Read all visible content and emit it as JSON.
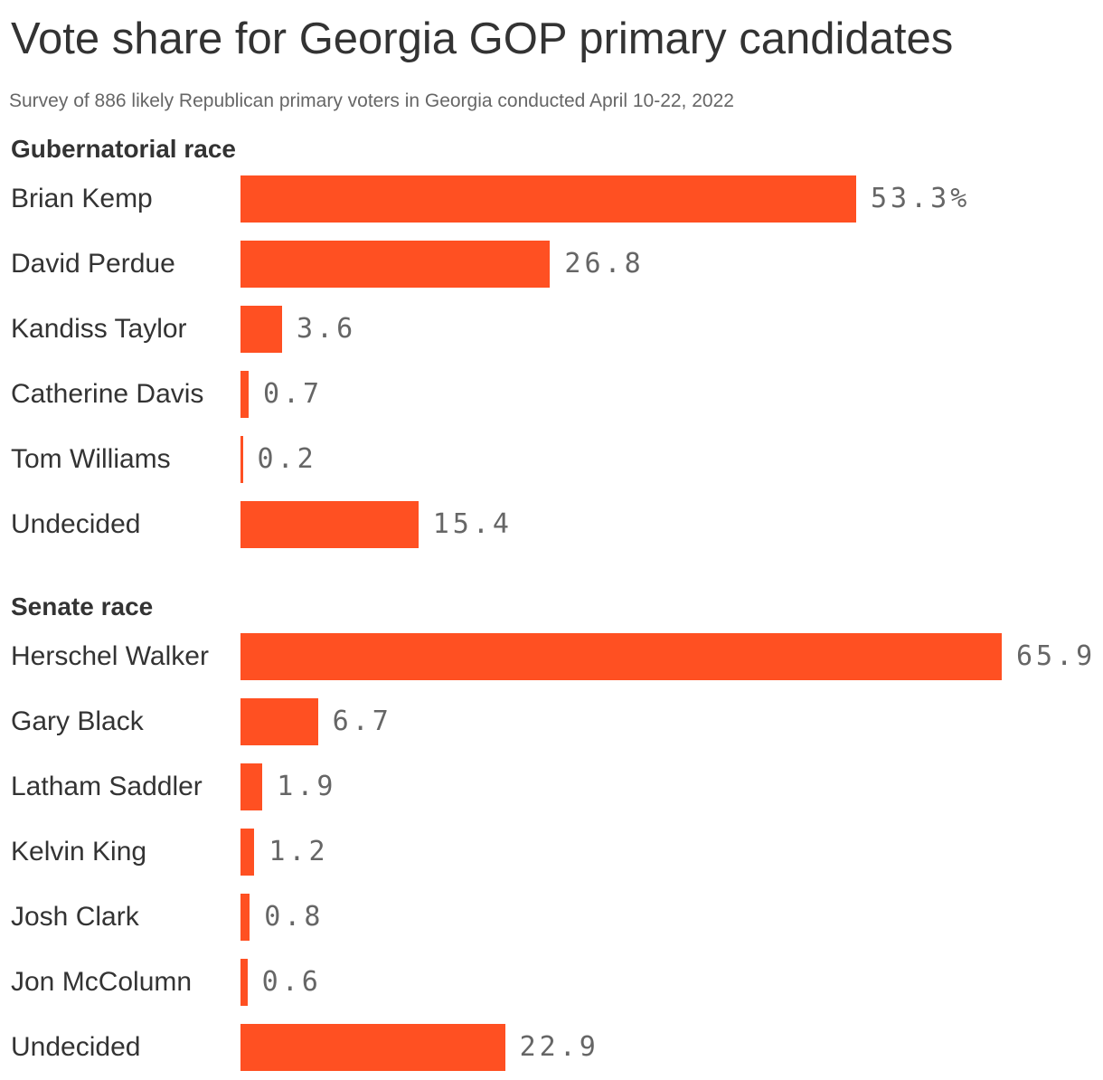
{
  "header": {
    "title": "Vote share for Georgia GOP primary candidates",
    "subtitle": "Survey of 886 likely Republican primary voters in Georgia conducted April 10-22, 2022"
  },
  "colors": {
    "bar": "#ff5022",
    "text": "#333333",
    "value_text": "#666666"
  },
  "chart_data": [
    {
      "type": "bar",
      "orientation": "horizontal",
      "title": "Gubernatorial race",
      "categories": [
        "Brian Kemp",
        "David Perdue",
        "Kandiss Taylor",
        "Catherine Davis",
        "Tom Williams",
        "Undecided"
      ],
      "values": [
        53.3,
        26.8,
        3.6,
        0.7,
        0.2,
        15.4
      ],
      "value_labels": [
        "53.3%",
        "26.8",
        "3.6",
        "0.7",
        "0.2",
        "15.4"
      ],
      "unit": "%",
      "xlim": [
        0,
        65.9
      ],
      "grid": false,
      "legend": "none"
    },
    {
      "type": "bar",
      "orientation": "horizontal",
      "title": "Senate race",
      "categories": [
        "Herschel Walker",
        "Gary Black",
        "Latham Saddler",
        "Kelvin King",
        "Josh Clark",
        "Jon McColumn",
        "Undecided"
      ],
      "values": [
        65.9,
        6.7,
        1.9,
        1.2,
        0.8,
        0.6,
        22.9
      ],
      "value_labels": [
        "65.9",
        "6.7",
        "1.9",
        "1.2",
        "0.8",
        "0.6",
        "22.9"
      ],
      "unit": "%",
      "xlim": [
        0,
        65.9
      ],
      "grid": false,
      "legend": "none"
    }
  ]
}
